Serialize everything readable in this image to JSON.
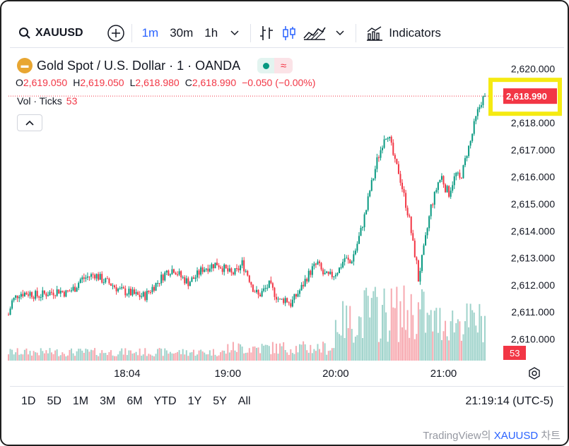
{
  "toolbar": {
    "symbol": "XAUUSD",
    "intervals": [
      "1m",
      "30m",
      "1h"
    ],
    "active_interval": "1m",
    "indicators_label": "Indicators"
  },
  "legend": {
    "title": "Gold Spot / U.S. Dollar · 1 · OANDA",
    "badge": "🪙",
    "o_label": "O",
    "o_value": "2,619.050",
    "h_label": "H",
    "h_value": "2,619.050",
    "l_label": "L",
    "l_value": "2,618.980",
    "c_label": "C",
    "c_value": "2,618.990",
    "change": "−0.050 (−0.00%)",
    "vol_label": "Vol · Ticks",
    "vol_value": "53"
  },
  "colors": {
    "up": "#089981",
    "down": "#f23645",
    "highlight_box": "#f5ea12",
    "vol_up": "#9fd3cb",
    "vol_down": "#f7a9b0"
  },
  "chart_data": {
    "type": "candlestick",
    "instrument": "XAUUSD",
    "interval": "1m",
    "ylim": [
      2609.7,
      2620.3
    ],
    "y_ticks": [
      "2,620.000",
      "2,619.000",
      "2,618.000",
      "2,617.000",
      "2,616.000",
      "2,615.000",
      "2,614.000",
      "2,613.000",
      "2,612.000",
      "2,611.000",
      "2,610.000"
    ],
    "y_tick_values": [
      2620,
      2619,
      2618,
      2617,
      2616,
      2615,
      2614,
      2613,
      2612,
      2611,
      2610
    ],
    "x_ticks": [
      "18:04",
      "19:00",
      "20:00",
      "21:00"
    ],
    "x_tick_minutes": [
      1084,
      1140,
      1200,
      1260
    ],
    "x_range_minutes": [
      1018,
      1283
    ],
    "last_price": "2,618.990",
    "last_price_value": 2618.99,
    "last_volume_label": "53",
    "path": [
      [
        1018,
        2610.9
      ],
      [
        1020,
        2611.4
      ],
      [
        1024,
        2611.7
      ],
      [
        1030,
        2611.7
      ],
      [
        1034,
        2611.6
      ],
      [
        1040,
        2611.7
      ],
      [
        1046,
        2611.8
      ],
      [
        1050,
        2611.7
      ],
      [
        1055,
        2611.9
      ],
      [
        1058,
        2612.2
      ],
      [
        1062,
        2612.3
      ],
      [
        1066,
        2612.4
      ],
      [
        1070,
        2612.2
      ],
      [
        1076,
        2612.0
      ],
      [
        1080,
        2611.8
      ],
      [
        1086,
        2611.7
      ],
      [
        1090,
        2611.6
      ],
      [
        1094,
        2611.6
      ],
      [
        1098,
        2611.9
      ],
      [
        1101,
        2612.1
      ],
      [
        1106,
        2612.5
      ],
      [
        1110,
        2612.6
      ],
      [
        1114,
        2612.3
      ],
      [
        1118,
        2612.1
      ],
      [
        1122,
        2612.3
      ],
      [
        1126,
        2612.6
      ],
      [
        1130,
        2612.7
      ],
      [
        1134,
        2612.8
      ],
      [
        1138,
        2612.6
      ],
      [
        1142,
        2612.4
      ],
      [
        1145,
        2612.5
      ],
      [
        1148,
        2612.8
      ],
      [
        1151,
        2612.4
      ],
      [
        1154,
        2611.9
      ],
      [
        1157,
        2611.6
      ],
      [
        1160,
        2611.8
      ],
      [
        1163,
        2612.0
      ],
      [
        1166,
        2611.7
      ],
      [
        1169,
        2611.4
      ],
      [
        1172,
        2611.5
      ],
      [
        1175,
        2611.3
      ],
      [
        1178,
        2611.6
      ],
      [
        1181,
        2611.9
      ],
      [
        1184,
        2612.3
      ],
      [
        1187,
        2612.6
      ],
      [
        1190,
        2612.8
      ],
      [
        1193,
        2612.4
      ],
      [
        1196,
        2612.3
      ],
      [
        1199,
        2612.4
      ],
      [
        1202,
        2612.6
      ],
      [
        1205,
        2613.0
      ],
      [
        1208,
        2612.8
      ],
      [
        1211,
        2613.3
      ],
      [
        1214,
        2614.0
      ],
      [
        1217,
        2614.8
      ],
      [
        1219,
        2615.5
      ],
      [
        1221,
        2616.0
      ],
      [
        1223,
        2616.6
      ],
      [
        1225,
        2617.0
      ],
      [
        1227,
        2617.5
      ],
      [
        1229,
        2617.6
      ],
      [
        1231,
        2617.1
      ],
      [
        1233,
        2616.5
      ],
      [
        1235,
        2616.2
      ],
      [
        1237,
        2615.6
      ],
      [
        1239,
        2615.0
      ],
      [
        1241,
        2614.4
      ],
      [
        1243,
        2613.5
      ],
      [
        1245,
        2612.8
      ],
      [
        1246,
        2612.2
      ],
      [
        1247,
        2612.6
      ],
      [
        1249,
        2613.3
      ],
      [
        1251,
        2614.1
      ],
      [
        1253,
        2614.9
      ],
      [
        1255,
        2615.3
      ],
      [
        1257,
        2615.8
      ],
      [
        1259,
        2616.0
      ],
      [
        1261,
        2615.6
      ],
      [
        1263,
        2615.4
      ],
      [
        1265,
        2615.8
      ],
      [
        1267,
        2616.1
      ],
      [
        1269,
        2615.9
      ],
      [
        1271,
        2616.3
      ],
      [
        1273,
        2616.9
      ],
      [
        1275,
        2617.3
      ],
      [
        1277,
        2617.9
      ],
      [
        1279,
        2618.4
      ],
      [
        1281,
        2618.8
      ],
      [
        1283,
        2618.99
      ]
    ]
  },
  "bottom": {
    "ranges": [
      "1D",
      "5D",
      "1M",
      "3M",
      "6M",
      "YTD",
      "1Y",
      "5Y",
      "All"
    ],
    "clock": "21:19:14 (UTC-5)"
  },
  "attribution": {
    "prefix": "TradingView의 ",
    "symbol": "XAUUSD",
    "suffix": " 차트"
  }
}
